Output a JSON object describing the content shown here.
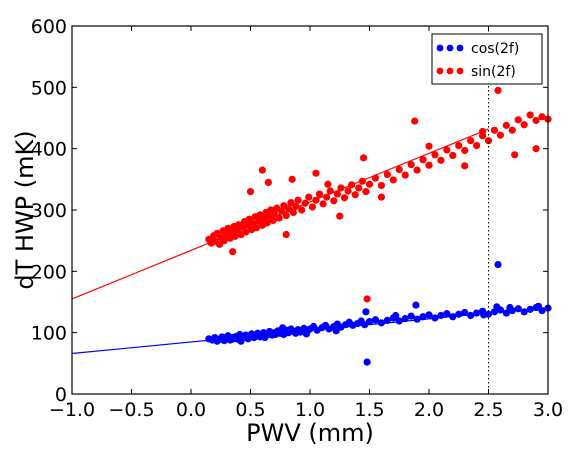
{
  "chart_data": {
    "type": "scatter",
    "title": "",
    "xlabel": "PWV (mm)",
    "ylabel": "dT HWP (mK)",
    "xlim": [
      -1.0,
      3.0
    ],
    "ylim": [
      0,
      600
    ],
    "x_ticks": [
      "−1.0",
      "−0.5",
      "0.0",
      "0.5",
      "1.0",
      "1.5",
      "2.0",
      "2.5",
      "3.0"
    ],
    "y_ticks": [
      "0",
      "100",
      "200",
      "300",
      "400",
      "500",
      "600"
    ],
    "grid": false,
    "legend_position": "top-right",
    "vertical_reference_line": {
      "x": 2.5,
      "style": "dotted"
    },
    "series": [
      {
        "name": "cos(2f)",
        "color": "#0000ff",
        "fit_line": {
          "x": [
            -1.0,
            2.5
          ],
          "y": [
            66,
            132
          ]
        },
        "points": [
          [
            0.15,
            90
          ],
          [
            0.18,
            88
          ],
          [
            0.2,
            92
          ],
          [
            0.22,
            86
          ],
          [
            0.24,
            89
          ],
          [
            0.26,
            93
          ],
          [
            0.28,
            87
          ],
          [
            0.3,
            91
          ],
          [
            0.31,
            95
          ],
          [
            0.33,
            88
          ],
          [
            0.35,
            92
          ],
          [
            0.36,
            90
          ],
          [
            0.38,
            94
          ],
          [
            0.4,
            89
          ],
          [
            0.41,
            97
          ],
          [
            0.43,
            91
          ],
          [
            0.45,
            93
          ],
          [
            0.46,
            96
          ],
          [
            0.48,
            90
          ],
          [
            0.5,
            94
          ],
          [
            0.51,
            98
          ],
          [
            0.53,
            92
          ],
          [
            0.55,
            95
          ],
          [
            0.56,
            99
          ],
          [
            0.58,
            93
          ],
          [
            0.6,
            97
          ],
          [
            0.61,
            100
          ],
          [
            0.63,
            95
          ],
          [
            0.65,
            98
          ],
          [
            0.66,
            102
          ],
          [
            0.68,
            96
          ],
          [
            0.7,
            100
          ],
          [
            0.71,
            97
          ],
          [
            0.73,
            103
          ],
          [
            0.75,
            99
          ],
          [
            0.76,
            101
          ],
          [
            0.78,
            97
          ],
          [
            0.8,
            104
          ],
          [
            0.82,
            100
          ],
          [
            0.84,
            106
          ],
          [
            0.86,
            102
          ],
          [
            0.88,
            99
          ],
          [
            0.9,
            105
          ],
          [
            0.92,
            101
          ],
          [
            0.95,
            107
          ],
          [
            0.98,
            103
          ],
          [
            1.0,
            106
          ],
          [
            1.03,
            110
          ],
          [
            1.06,
            104
          ],
          [
            1.1,
            108
          ],
          [
            1.13,
            112
          ],
          [
            1.16,
            106
          ],
          [
            1.2,
            110
          ],
          [
            1.23,
            114
          ],
          [
            1.26,
            109
          ],
          [
            1.3,
            113
          ],
          [
            1.33,
            117
          ],
          [
            1.36,
            112
          ],
          [
            1.4,
            115
          ],
          [
            1.43,
            119
          ],
          [
            1.46,
            113
          ],
          [
            1.5,
            118
          ],
          [
            1.55,
            121
          ],
          [
            1.6,
            116
          ],
          [
            1.65,
            120
          ],
          [
            1.7,
            124
          ],
          [
            1.75,
            119
          ],
          [
            1.8,
            123
          ],
          [
            1.85,
            127
          ],
          [
            1.9,
            122
          ],
          [
            1.95,
            126
          ],
          [
            2.0,
            129
          ],
          [
            2.05,
            124
          ],
          [
            2.1,
            128
          ],
          [
            2.15,
            131
          ],
          [
            2.2,
            126
          ],
          [
            2.25,
            130
          ],
          [
            2.3,
            133
          ],
          [
            2.35,
            128
          ],
          [
            2.4,
            132
          ],
          [
            2.45,
            135
          ],
          [
            2.5,
            130
          ],
          [
            2.55,
            134
          ],
          [
            2.6,
            137
          ],
          [
            2.65,
            132
          ],
          [
            2.7,
            136
          ],
          [
            2.75,
            139
          ],
          [
            2.8,
            134
          ],
          [
            2.85,
            138
          ],
          [
            2.9,
            141
          ],
          [
            2.95,
            136
          ],
          [
            3.0,
            140
          ],
          [
            0.42,
            86
          ],
          [
            0.62,
            92
          ],
          [
            0.77,
            108
          ],
          [
            0.97,
            98
          ],
          [
            1.47,
            134
          ],
          [
            1.22,
            103
          ],
          [
            1.72,
            128
          ],
          [
            1.48,
            52
          ],
          [
            1.89,
            145
          ],
          [
            2.58,
            211
          ],
          [
            2.57,
            142
          ],
          [
            2.68,
            141
          ],
          [
            2.92,
            143
          ],
          [
            2.46,
            129
          ]
        ]
      },
      {
        "name": "sin(2f)",
        "color": "#ff0000",
        "fit_line": {
          "x": [
            -1.0,
            2.5
          ],
          "y": [
            155,
            432
          ]
        },
        "points": [
          [
            0.15,
            252
          ],
          [
            0.17,
            246
          ],
          [
            0.19,
            258
          ],
          [
            0.2,
            249
          ],
          [
            0.22,
            262
          ],
          [
            0.24,
            244
          ],
          [
            0.25,
            255
          ],
          [
            0.27,
            266
          ],
          [
            0.28,
            250
          ],
          [
            0.3,
            260
          ],
          [
            0.31,
            270
          ],
          [
            0.33,
            254
          ],
          [
            0.34,
            263
          ],
          [
            0.36,
            273
          ],
          [
            0.37,
            257
          ],
          [
            0.39,
            268
          ],
          [
            0.4,
            276
          ],
          [
            0.42,
            260
          ],
          [
            0.43,
            272
          ],
          [
            0.45,
            281
          ],
          [
            0.46,
            264
          ],
          [
            0.48,
            275
          ],
          [
            0.49,
            285
          ],
          [
            0.51,
            268
          ],
          [
            0.52,
            278
          ],
          [
            0.54,
            289
          ],
          [
            0.55,
            271
          ],
          [
            0.57,
            282
          ],
          [
            0.58,
            292
          ],
          [
            0.6,
            275
          ],
          [
            0.61,
            286
          ],
          [
            0.63,
            296
          ],
          [
            0.64,
            279
          ],
          [
            0.66,
            290
          ],
          [
            0.67,
            300
          ],
          [
            0.69,
            283
          ],
          [
            0.7,
            294
          ],
          [
            0.72,
            303
          ],
          [
            0.74,
            287
          ],
          [
            0.76,
            298
          ],
          [
            0.78,
            307
          ],
          [
            0.8,
            291
          ],
          [
            0.82,
            302
          ],
          [
            0.84,
            312
          ],
          [
            0.86,
            296
          ],
          [
            0.88,
            306
          ],
          [
            0.9,
            316
          ],
          [
            0.93,
            300
          ],
          [
            0.96,
            311
          ],
          [
            0.99,
            321
          ],
          [
            1.02,
            305
          ],
          [
            1.05,
            316
          ],
          [
            1.08,
            326
          ],
          [
            1.11,
            310
          ],
          [
            1.14,
            321
          ],
          [
            1.17,
            331
          ],
          [
            1.2,
            315
          ],
          [
            1.23,
            326
          ],
          [
            1.26,
            336
          ],
          [
            1.29,
            320
          ],
          [
            1.32,
            331
          ],
          [
            1.35,
            341
          ],
          [
            1.38,
            325
          ],
          [
            1.41,
            336
          ],
          [
            1.44,
            347
          ],
          [
            1.47,
            330
          ],
          [
            1.5,
            342
          ],
          [
            1.55,
            352
          ],
          [
            1.6,
            340
          ],
          [
            1.65,
            358
          ],
          [
            1.7,
            349
          ],
          [
            1.75,
            366
          ],
          [
            1.8,
            357
          ],
          [
            1.85,
            374
          ],
          [
            1.9,
            365
          ],
          [
            1.95,
            382
          ],
          [
            2.0,
            373
          ],
          [
            2.05,
            390
          ],
          [
            2.1,
            381
          ],
          [
            2.15,
            398
          ],
          [
            2.2,
            389
          ],
          [
            2.25,
            405
          ],
          [
            2.3,
            397
          ],
          [
            2.35,
            413
          ],
          [
            2.4,
            405
          ],
          [
            2.45,
            421
          ],
          [
            2.5,
            413
          ],
          [
            2.55,
            430
          ],
          [
            2.6,
            422
          ],
          [
            2.65,
            438
          ],
          [
            2.7,
            430
          ],
          [
            2.75,
            447
          ],
          [
            2.8,
            439
          ],
          [
            2.85,
            455
          ],
          [
            2.9,
            446
          ],
          [
            2.95,
            452
          ],
          [
            3.0,
            448
          ],
          [
            0.35,
            232
          ],
          [
            0.5,
            330
          ],
          [
            0.65,
            345
          ],
          [
            0.85,
            350
          ],
          [
            1.05,
            360
          ],
          [
            1.25,
            290
          ],
          [
            1.45,
            385
          ],
          [
            1.88,
            445
          ],
          [
            1.48,
            155
          ],
          [
            2.58,
            495
          ],
          [
            2.72,
            390
          ],
          [
            2.9,
            400
          ],
          [
            2.45,
            428
          ],
          [
            0.6,
            365
          ],
          [
            0.8,
            260
          ],
          [
            1.15,
            342
          ],
          [
            1.6,
            321
          ],
          [
            2.0,
            404
          ],
          [
            2.3,
            372
          ]
        ]
      }
    ]
  }
}
